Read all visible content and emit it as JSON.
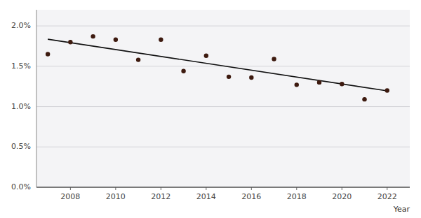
{
  "chart_data": {
    "type": "scatter",
    "x_label": "Year",
    "series": [
      {
        "type": "scatter",
        "color": "#3d1a0f",
        "x": [
          2007,
          2008,
          2009,
          2010,
          2011,
          2012,
          2013,
          2014,
          2015,
          2016,
          2017,
          2018,
          2019,
          2020,
          2021,
          2022
        ],
        "values": [
          0.0165,
          0.018,
          0.0187,
          0.0183,
          0.0158,
          0.0183,
          0.0144,
          0.0163,
          0.0137,
          0.0136,
          0.0159,
          0.0127,
          0.013,
          0.0128,
          0.0109,
          0.012
        ]
      },
      {
        "type": "line",
        "color": "#111111",
        "x": [
          2007,
          2022
        ],
        "values": [
          0.01835,
          0.01195
        ]
      }
    ],
    "xlim": [
      2006.5,
      2023.0
    ],
    "xticks": [
      2008,
      2010,
      2012,
      2014,
      2016,
      2018,
      2020,
      2022
    ],
    "ylim": [
      0.0,
      0.022
    ],
    "yticks": [
      {
        "value": 0.0,
        "label": "0.0%"
      },
      {
        "value": 0.005,
        "label": "0.5%"
      },
      {
        "value": 0.01,
        "label": "1.0%"
      },
      {
        "value": 0.015,
        "label": "1.5%"
      },
      {
        "value": 0.02,
        "label": "2.0%"
      }
    ],
    "grid": true
  }
}
